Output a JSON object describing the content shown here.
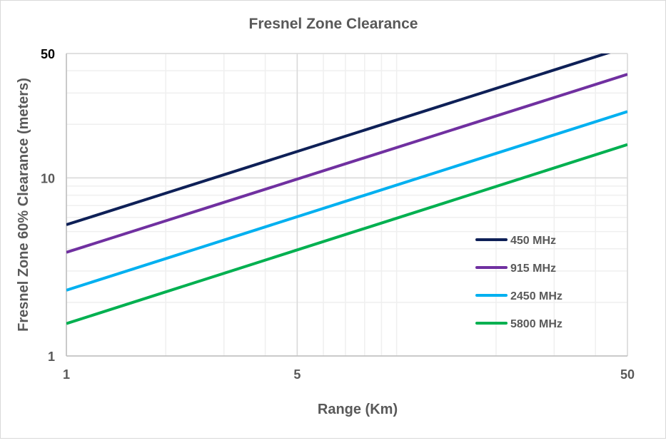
{
  "chart_data": {
    "type": "line",
    "title": "Fresnel Zone Clearance",
    "xlabel": "Range (Km)",
    "ylabel": "Fresnel Zone 60% Clearance (meters)",
    "x_scale": "log",
    "y_scale": "log",
    "xlim": [
      1,
      50
    ],
    "ylim": [
      1,
      50
    ],
    "x_ticks": [
      1,
      5,
      50
    ],
    "y_ticks": [
      1,
      10,
      50
    ],
    "x_tick_labels": [
      "1",
      "5",
      "50"
    ],
    "y_tick_labels": [
      "1",
      "10",
      "50"
    ],
    "grid": true,
    "legend_position": "lower-right",
    "series": [
      {
        "name": "450 MHz",
        "color": "#0e2057",
        "x": [
          1,
          50
        ],
        "y": [
          5.46,
          54.6
        ]
      },
      {
        "name": "915 MHz",
        "color": "#7030a0",
        "x": [
          1,
          50
        ],
        "y": [
          3.82,
          38.2
        ]
      },
      {
        "name": "2450 MHz",
        "color": "#00b0f0",
        "x": [
          1,
          50
        ],
        "y": [
          2.34,
          23.6
        ]
      },
      {
        "name": "5800 MHz",
        "color": "#00b050",
        "x": [
          1,
          50
        ],
        "y": [
          1.52,
          15.4
        ]
      }
    ]
  }
}
